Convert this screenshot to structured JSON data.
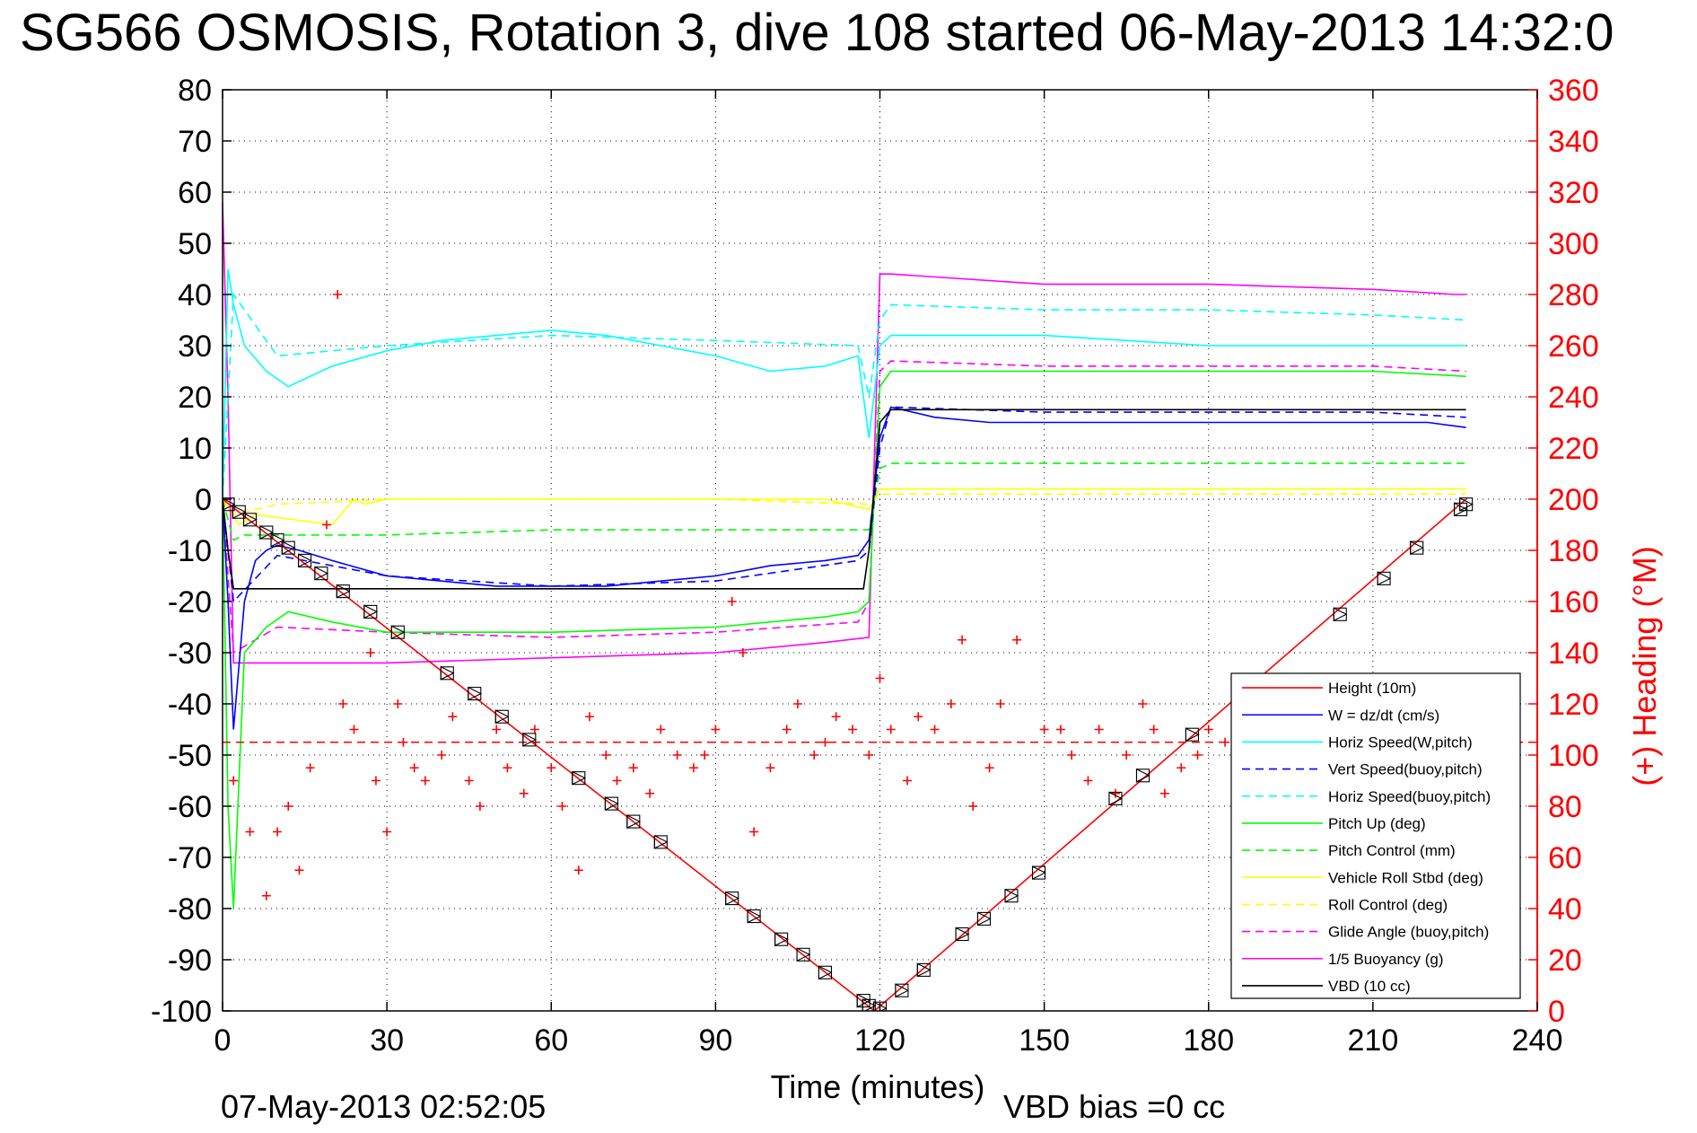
{
  "chart_data": {
    "type": "line",
    "title": "SG566 OSMOSIS, Rotation 3, dive 108 started 06-May-2013 14:32:0",
    "xlabel": "Time (minutes)",
    "ylabel_right": "(+) Heading (°M)",
    "xlim": [
      0,
      240
    ],
    "ylim": [
      -100,
      80
    ],
    "ylim_right": [
      0,
      360
    ],
    "x_ticks": [
      "0",
      "30",
      "60",
      "90",
      "120",
      "150",
      "180",
      "210",
      "240"
    ],
    "y_ticks": [
      "-100",
      "-90",
      "-80",
      "-70",
      "-60",
      "-50",
      "-40",
      "-30",
      "-20",
      "-10",
      "0",
      "10",
      "20",
      "30",
      "40",
      "50",
      "60",
      "70",
      "80"
    ],
    "y_ticks_right": [
      "0",
      "20",
      "40",
      "60",
      "80",
      "100",
      "120",
      "140",
      "160",
      "180",
      "200",
      "220",
      "240",
      "260",
      "280",
      "300",
      "320",
      "340",
      "360"
    ],
    "grid": true,
    "legend_position": "lower-right",
    "footer_left": "07-May-2013 02:52:05",
    "footer_right": "VBD bias =0 cc",
    "series": [
      {
        "name": "Height (10m)",
        "color": "#ff0000",
        "style": "solid",
        "x": [
          0,
          119,
          227
        ],
        "y": [
          0,
          -100,
          0
        ]
      },
      {
        "name": "W = dz/dt (cm/s)",
        "color": "#0000ff",
        "style": "solid",
        "x": [
          0,
          1,
          2,
          4,
          6,
          8,
          10,
          14,
          20,
          30,
          40,
          50,
          60,
          70,
          80,
          90,
          100,
          110,
          116,
          118,
          120,
          122,
          130,
          140,
          160,
          180,
          200,
          220,
          227
        ],
        "y": [
          0,
          -20,
          -45,
          -20,
          -12,
          -10,
          -9,
          -10,
          -12,
          -15,
          -16,
          -17,
          -17,
          -17,
          -16,
          -15,
          -13,
          -12,
          -11,
          -8,
          12,
          18,
          16,
          15,
          15,
          15,
          15,
          15,
          14
        ]
      },
      {
        "name": "Horiz Speed(W,pitch)",
        "color": "#00ffff",
        "style": "solid",
        "x": [
          0,
          1,
          2,
          4,
          8,
          12,
          20,
          30,
          40,
          50,
          60,
          70,
          80,
          90,
          100,
          110,
          116,
          118,
          120,
          122,
          130,
          150,
          180,
          210,
          227
        ],
        "y": [
          0,
          45,
          38,
          30,
          25,
          22,
          26,
          29,
          31,
          32,
          33,
          32,
          30,
          28,
          25,
          26,
          28,
          12,
          30,
          32,
          32,
          32,
          30,
          30,
          30
        ]
      },
      {
        "name": "Vert Speed(buoy,pitch)",
        "color": "#0000ff",
        "style": "dashed",
        "x": [
          0,
          2,
          10,
          30,
          60,
          90,
          116,
          118,
          120,
          122,
          150,
          180,
          210,
          227
        ],
        "y": [
          0,
          -20,
          -11,
          -15,
          -17,
          -16,
          -12,
          -10,
          10,
          18,
          17,
          17,
          17,
          16
        ]
      },
      {
        "name": "Horiz Speed(buoy,pitch)",
        "color": "#00ffff",
        "style": "dashed",
        "x": [
          0,
          2,
          10,
          30,
          60,
          90,
          116,
          118,
          120,
          122,
          150,
          180,
          210,
          227
        ],
        "y": [
          0,
          40,
          28,
          30,
          32,
          31,
          30,
          20,
          35,
          38,
          37,
          37,
          36,
          35
        ]
      },
      {
        "name": "Pitch Up (deg)",
        "color": "#00ff00",
        "style": "solid",
        "x": [
          0,
          1,
          2,
          4,
          8,
          12,
          20,
          30,
          40,
          60,
          90,
          110,
          116,
          118,
          120,
          122,
          150,
          180,
          210,
          227
        ],
        "y": [
          0,
          -60,
          -80,
          -30,
          -25,
          -22,
          -24,
          -26,
          -26,
          -26,
          -25,
          -23,
          -22,
          -20,
          22,
          25,
          25,
          25,
          25,
          24
        ]
      },
      {
        "name": "Pitch Control (mm)",
        "color": "#00ff00",
        "style": "dashed",
        "x": [
          0,
          2,
          4,
          10,
          30,
          60,
          90,
          116,
          118,
          120,
          122,
          150,
          180,
          210,
          227
        ],
        "y": [
          0,
          -8,
          -7,
          -7,
          -7,
          -6,
          -6,
          -6,
          -6,
          6,
          7,
          7,
          7,
          7,
          7
        ]
      },
      {
        "name": "Vehicle Roll Stbd (deg)",
        "color": "#ffff00",
        "style": "solid",
        "x": [
          0,
          3,
          6,
          20,
          24,
          26,
          30,
          60,
          90,
          110,
          118,
          120,
          150,
          180,
          210,
          227
        ],
        "y": [
          0,
          -5,
          -3,
          -5,
          0,
          -1,
          0,
          0,
          0,
          0,
          -2,
          2,
          2,
          2,
          2,
          2
        ]
      },
      {
        "name": "Roll Control (deg)",
        "color": "#ffff00",
        "style": "dashed",
        "x": [
          0,
          2,
          10,
          30,
          60,
          90,
          118,
          120,
          150,
          180,
          210,
          227
        ],
        "y": [
          0,
          -3,
          -1,
          0,
          0,
          0,
          -1,
          1,
          1,
          1,
          1,
          1
        ]
      },
      {
        "name": "Glide Angle (buoy,pitch)",
        "color": "#ff00ff",
        "style": "dashed",
        "x": [
          0,
          2,
          10,
          30,
          60,
          90,
          116,
          118,
          120,
          122,
          150,
          180,
          210,
          227
        ],
        "y": [
          0,
          -30,
          -25,
          -26,
          -27,
          -26,
          -24,
          -20,
          25,
          27,
          26,
          26,
          26,
          25
        ]
      },
      {
        "name": "1/5 Buoyancy (g)",
        "color": "#ff00ff",
        "style": "solid",
        "x": [
          0,
          1,
          2,
          4,
          10,
          30,
          60,
          90,
          110,
          118,
          120,
          122,
          150,
          180,
          210,
          225,
          227
        ],
        "y": [
          58,
          20,
          -32,
          -32,
          -32,
          -32,
          -31,
          -30,
          -28,
          -27,
          44,
          44,
          42,
          42,
          41,
          40,
          40
        ]
      },
      {
        "name": "VBD (10 cc)",
        "color": "#000000",
        "style": "solid",
        "x": [
          0,
          1,
          2,
          117,
          118,
          120,
          122,
          227
        ],
        "y": [
          0,
          -10,
          -17.5,
          -17.5,
          -10,
          15,
          17.5,
          17.5
        ]
      }
    ],
    "heading": {
      "axis": "right",
      "x": [
        2,
        5,
        8,
        10,
        12,
        14,
        16,
        19,
        21,
        22,
        24,
        27,
        28,
        30,
        32,
        33,
        35,
        37,
        40,
        42,
        45,
        47,
        50,
        52,
        55,
        57,
        60,
        62,
        65,
        67,
        70,
        72,
        75,
        78,
        80,
        83,
        86,
        88,
        90,
        93,
        95,
        97,
        100,
        103,
        105,
        108,
        110,
        112,
        115,
        118,
        120,
        122,
        125,
        127,
        130,
        133,
        135,
        137,
        140,
        142,
        145,
        150,
        153,
        155,
        158,
        160,
        163,
        165,
        168,
        170,
        172,
        175,
        178,
        180,
        183,
        185
      ],
      "y": [
        90,
        70,
        45,
        70,
        80,
        55,
        95,
        190,
        280,
        120,
        110,
        140,
        90,
        70,
        120,
        105,
        95,
        90,
        100,
        115,
        90,
        80,
        110,
        95,
        85,
        110,
        95,
        80,
        55,
        115,
        100,
        90,
        95,
        85,
        110,
        100,
        95,
        100,
        110,
        160,
        140,
        70,
        95,
        110,
        120,
        100,
        105,
        115,
        110,
        100,
        130,
        110,
        90,
        115,
        110,
        120,
        145,
        80,
        95,
        120,
        145,
        110,
        110,
        100,
        90,
        110,
        85,
        100,
        120,
        110,
        85,
        95,
        100,
        110,
        105,
        100
      ],
      "dashed_mean": 105
    },
    "markers": {
      "x": [
        1,
        3,
        5,
        8,
        10,
        12,
        15,
        18,
        22,
        27,
        32,
        41,
        46,
        51,
        56,
        65,
        71,
        75,
        80,
        93,
        97,
        102,
        106,
        110,
        117,
        118,
        120,
        124,
        128,
        135,
        139,
        144,
        149,
        163,
        168,
        177,
        204,
        212,
        218,
        226,
        227
      ],
      "y": [
        -1,
        -2.5,
        -4,
        -6.5,
        -8,
        -9.5,
        -12,
        -14.5,
        -18,
        -22,
        -26,
        -34,
        -38,
        -42.5,
        -47,
        -54.5,
        -59.5,
        -63,
        -67,
        -78,
        -81.5,
        -86,
        -89,
        -92.5,
        -98,
        -99,
        -99.5,
        -96,
        -92,
        -85,
        -82,
        -77.5,
        -73,
        -58.5,
        -54,
        -46,
        -22.5,
        -15.5,
        -9.5,
        -2,
        -1
      ]
    }
  },
  "legend": {
    "items": [
      {
        "label": "Height (10m)",
        "color": "#ff0000",
        "style": "solid"
      },
      {
        "label": "W = dz/dt (cm/s)",
        "color": "#0000ff",
        "style": "solid"
      },
      {
        "label": "Horiz Speed(W,pitch)",
        "color": "#00ffff",
        "style": "solid"
      },
      {
        "label": "Vert Speed(buoy,pitch)",
        "color": "#0000ff",
        "style": "dashed"
      },
      {
        "label": "Horiz Speed(buoy,pitch)",
        "color": "#00ffff",
        "style": "dashed"
      },
      {
        "label": "Pitch Up (deg)",
        "color": "#00ff00",
        "style": "solid"
      },
      {
        "label": "Pitch Control (mm)",
        "color": "#00ff00",
        "style": "dashed"
      },
      {
        "label": "Vehicle Roll Stbd (deg)",
        "color": "#ffff00",
        "style": "solid"
      },
      {
        "label": "Roll Control (deg)",
        "color": "#ffff00",
        "style": "dashed"
      },
      {
        "label": "Glide Angle (buoy,pitch)",
        "color": "#ff00ff",
        "style": "dashed"
      },
      {
        "label": "1/5 Buoyancy (g)",
        "color": "#ff00ff",
        "style": "solid"
      },
      {
        "label": "VBD (10 cc)",
        "color": "#000000",
        "style": "solid"
      }
    ]
  }
}
